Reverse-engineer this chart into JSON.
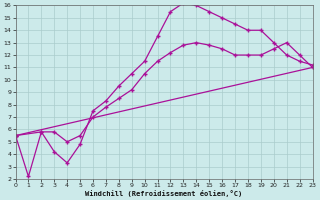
{
  "xlabel": "Windchill (Refroidissement éolien,°C)",
  "background_color": "#cceaea",
  "line_color": "#aa1199",
  "grid_color": "#aacccc",
  "xlim": [
    0,
    23
  ],
  "ylim": [
    2,
    16
  ],
  "xticks": [
    0,
    1,
    2,
    3,
    4,
    5,
    6,
    7,
    8,
    9,
    10,
    11,
    12,
    13,
    14,
    15,
    16,
    17,
    18,
    19,
    20,
    21,
    22,
    23
  ],
  "yticks": [
    2,
    3,
    4,
    5,
    6,
    7,
    8,
    9,
    10,
    11,
    12,
    13,
    14,
    15,
    16
  ],
  "line1_x": [
    0,
    1,
    2,
    3,
    4,
    5,
    6,
    7,
    8,
    9,
    10,
    11,
    12,
    13,
    14,
    15,
    16,
    17,
    18,
    19,
    20,
    21,
    22,
    23
  ],
  "line1_y": [
    5.5,
    2.2,
    5.8,
    4.2,
    3.3,
    4.8,
    7.5,
    8.3,
    9.5,
    10.5,
    11.5,
    13.5,
    15.5,
    16.2,
    16.0,
    15.5,
    15.0,
    14.5,
    14.0,
    14.0,
    13.0,
    12.0,
    11.5,
    11.2
  ],
  "line2_x": [
    0,
    2,
    3,
    4,
    5,
    6,
    7,
    8,
    9,
    10,
    11,
    12,
    13,
    14,
    15,
    16,
    17,
    18,
    19,
    20,
    21,
    22,
    23
  ],
  "line2_y": [
    5.5,
    5.8,
    5.8,
    5.0,
    5.5,
    7.0,
    7.8,
    8.5,
    9.2,
    10.5,
    11.5,
    12.2,
    12.8,
    13.0,
    12.8,
    12.5,
    12.0,
    12.0,
    12.0,
    12.5,
    13.0,
    12.0,
    11.0
  ],
  "line3_x": [
    0,
    23
  ],
  "line3_y": [
    5.5,
    11.0
  ]
}
